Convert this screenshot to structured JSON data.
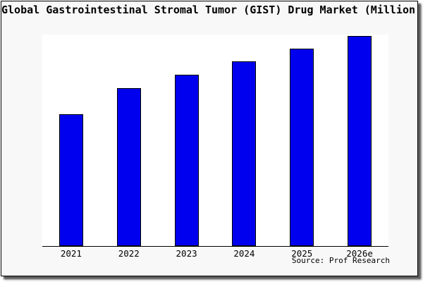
{
  "title": "Global Gastrointestinal Stromal Tumor (GIST) Drug Market (Million USD)",
  "source": "Source: Prof Research",
  "colors": {
    "bar": "#0000ee",
    "bar_border": "#000000",
    "figure_bg": "#f8f8f8",
    "plot_bg": "#ffffff",
    "axis": "#000000",
    "text": "#000000"
  },
  "chart_data": {
    "type": "bar",
    "title": "Global Gastrointestinal Stromal Tumor (GIST) Drug Market (Million USD)",
    "categories": [
      "2021",
      "2022",
      "2023",
      "2024",
      "2025",
      "2026e"
    ],
    "values": [
      62.3,
      74.7,
      81.0,
      87.3,
      93.3,
      99.3
    ],
    "xlabel": "",
    "ylabel": "",
    "ylim": [
      0,
      100
    ],
    "grid": false,
    "legend": false,
    "y_axis_labeled": false,
    "note": "No y-axis ticks or value labels are shown in the chart; values are estimated as percent of plot height.",
    "annotations": [
      "Source: Prof Research"
    ]
  }
}
